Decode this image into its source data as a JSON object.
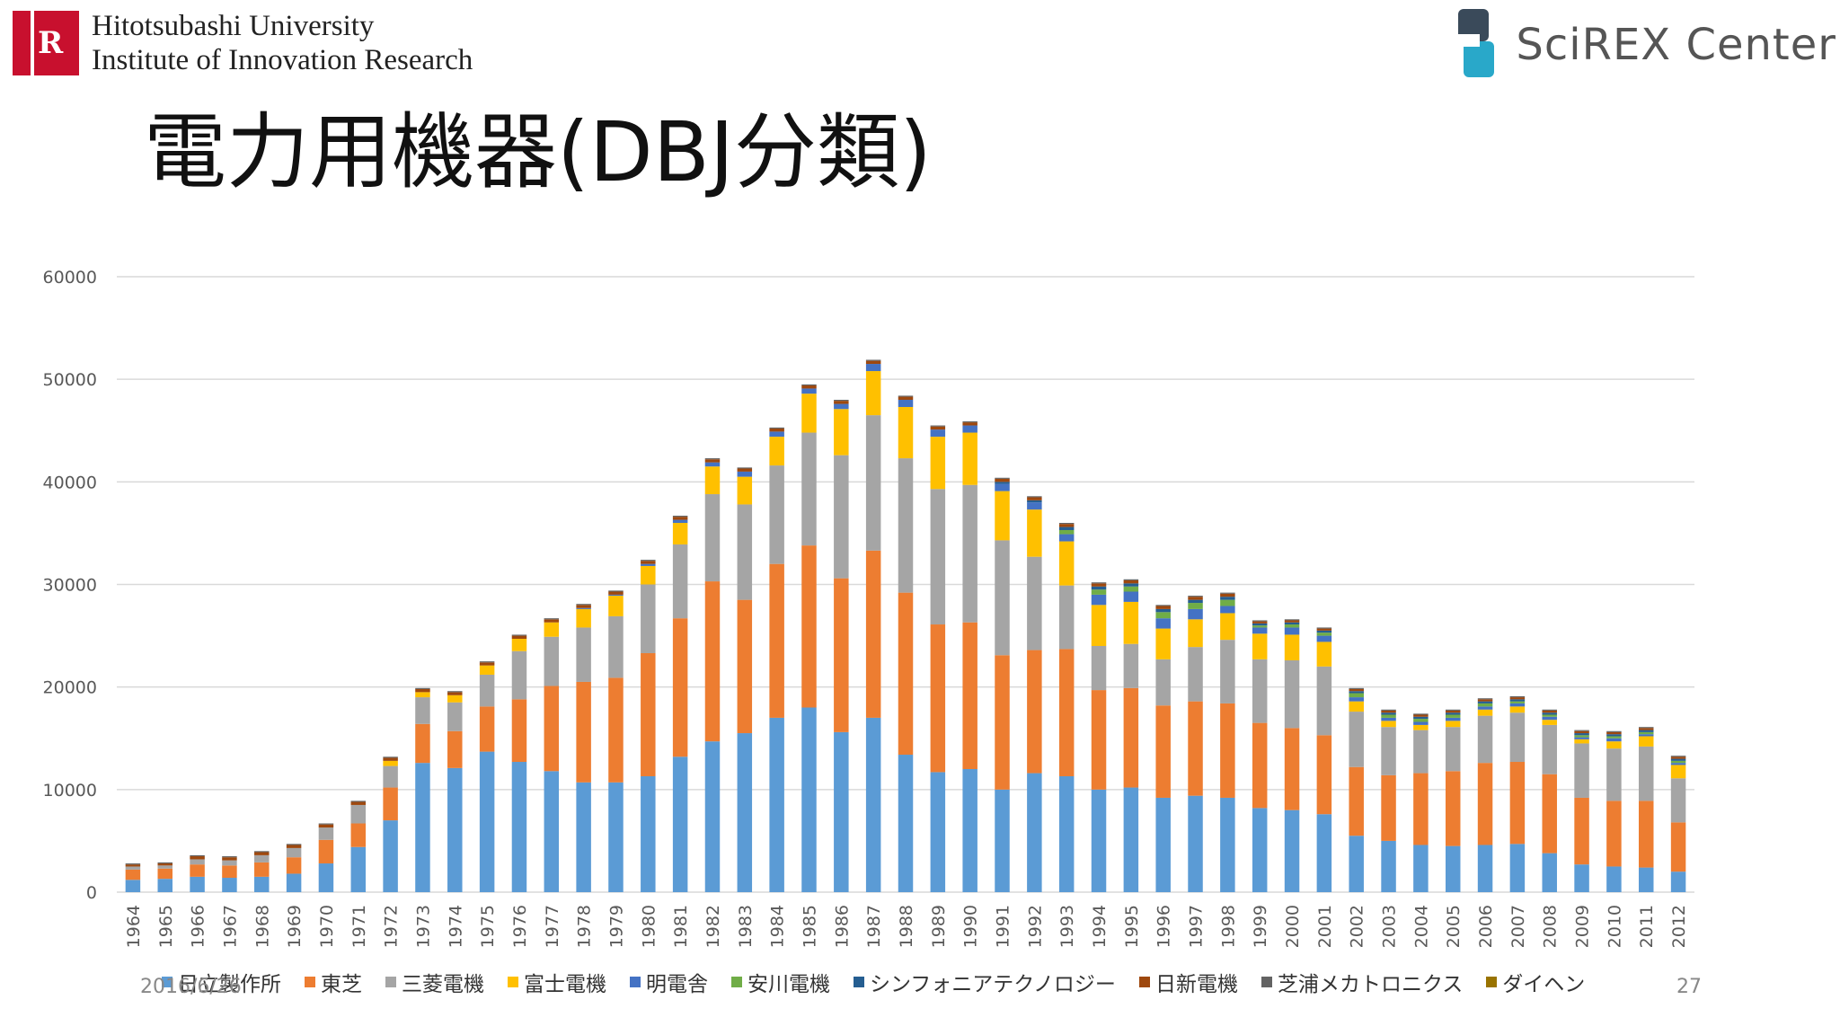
{
  "header": {
    "university_line1": "Hitotsubashi University",
    "university_line2": "Institute of Innovation Research",
    "logo_icon": "hitotsubashi-logo-icon",
    "logo_mark_letter": "R",
    "partner_name": "SciREX Center",
    "partner_icon": "scirex-logo-icon"
  },
  "slide": {
    "title": "電力用機器(DBJ分類)",
    "date": "2016/6/26",
    "page_number": "27"
  },
  "colors": {
    "hitachi": "#5b9bd5",
    "toshiba": "#ed7d31",
    "mitsubishi": "#a5a5a5",
    "fuji": "#ffc000",
    "meiden": "#4472c4",
    "yaskawa": "#70ad47",
    "symphonia": "#255e91",
    "nissin": "#9e480e",
    "shibaura": "#636363",
    "daihen": "#997300"
  },
  "chart_data": {
    "type": "bar",
    "stacked": true,
    "ylim": [
      0,
      60000
    ],
    "yticks": [
      0,
      10000,
      20000,
      30000,
      40000,
      50000,
      60000
    ],
    "grid": true,
    "legend_position": "bottom",
    "categories": [
      "1964",
      "1965",
      "1966",
      "1967",
      "1968",
      "1969",
      "1970",
      "1971",
      "1972",
      "1973",
      "1974",
      "1975",
      "1976",
      "1977",
      "1978",
      "1979",
      "1980",
      "1981",
      "1982",
      "1983",
      "1984",
      "1985",
      "1986",
      "1987",
      "1988",
      "1989",
      "1990",
      "1991",
      "1992",
      "1993",
      "1994",
      "1995",
      "1996",
      "1997",
      "1998",
      "1999",
      "2000",
      "2001",
      "2002",
      "2003",
      "2004",
      "2005",
      "2006",
      "2007",
      "2008",
      "2009",
      "2010",
      "2011",
      "2012"
    ],
    "series": [
      {
        "name": "日立製作所",
        "color": "#5b9bd5",
        "values": [
          1200,
          1300,
          1500,
          1400,
          1500,
          1800,
          2800,
          4400,
          7000,
          12600,
          12100,
          13700,
          12700,
          11800,
          10700,
          10700,
          11300,
          13200,
          14700,
          15500,
          17000,
          18000,
          15600,
          17000,
          13400,
          11700,
          12000,
          10000,
          11600,
          11300,
          10000,
          10200,
          9200,
          9400,
          9200,
          8200,
          8000,
          7600,
          5500,
          5000,
          4600,
          4500,
          4600,
          4700,
          3800,
          2700,
          2500,
          2400,
          2000
        ]
      },
      {
        "name": "東芝",
        "color": "#ed7d31",
        "values": [
          1000,
          1000,
          1200,
          1200,
          1400,
          1600,
          2300,
          2300,
          3200,
          3800,
          3600,
          4400,
          6100,
          8300,
          9800,
          10200,
          12000,
          13500,
          15600,
          13000,
          15000,
          15800,
          15000,
          16300,
          15800,
          14400,
          14300,
          13100,
          12000,
          12400,
          9700,
          9700,
          9000,
          9200,
          9200,
          8300,
          8000,
          7700,
          6700,
          6400,
          7000,
          7300,
          8000,
          8000,
          7700,
          6500,
          6400,
          6500,
          4800
        ]
      },
      {
        "name": "三菱電機",
        "color": "#a5a5a5",
        "values": [
          300,
          300,
          500,
          500,
          700,
          900,
          1200,
          1800,
          2100,
          2600,
          2800,
          3100,
          4700,
          4800,
          5300,
          6000,
          6700,
          7200,
          8500,
          9300,
          9600,
          11000,
          12000,
          13200,
          13100,
          13200,
          13400,
          11200,
          9100,
          6200,
          4300,
          4300,
          4500,
          5300,
          6200,
          6200,
          6600,
          6700,
          5400,
          4700,
          4200,
          4300,
          4600,
          4800,
          4800,
          5300,
          5100,
          5300,
          4300
        ]
      },
      {
        "name": "富士電機",
        "color": "#ffc000",
        "values": [
          0,
          0,
          0,
          0,
          0,
          0,
          0,
          0,
          500,
          500,
          700,
          900,
          1200,
          1400,
          1800,
          2000,
          1800,
          2100,
          2700,
          2700,
          2800,
          3800,
          4500,
          4300,
          5000,
          5100,
          5100,
          4800,
          4600,
          4300,
          4000,
          4100,
          3000,
          2700,
          2600,
          2500,
          2500,
          2400,
          1000,
          600,
          500,
          600,
          600,
          600,
          500,
          400,
          700,
          1000,
          1300
        ]
      },
      {
        "name": "明電舎",
        "color": "#4472c4",
        "values": [
          0,
          0,
          0,
          0,
          0,
          0,
          0,
          0,
          0,
          0,
          0,
          0,
          0,
          0,
          100,
          100,
          200,
          300,
          400,
          500,
          500,
          500,
          500,
          700,
          700,
          700,
          700,
          700,
          700,
          700,
          1000,
          1000,
          1000,
          1000,
          700,
          600,
          700,
          600,
          400,
          300,
          300,
          300,
          300,
          300,
          300,
          200,
          300,
          200,
          200
        ]
      },
      {
        "name": "安川電機",
        "color": "#70ad47",
        "values": [
          0,
          0,
          0,
          0,
          0,
          0,
          0,
          0,
          0,
          0,
          0,
          0,
          0,
          0,
          0,
          0,
          0,
          0,
          0,
          0,
          0,
          0,
          0,
          0,
          0,
          0,
          0,
          0,
          0,
          400,
          500,
          500,
          600,
          600,
          600,
          200,
          300,
          300,
          400,
          300,
          300,
          300,
          300,
          200,
          200,
          200,
          200,
          200,
          200
        ]
      },
      {
        "name": "シンフォニアテクノロジー",
        "color": "#255e91",
        "values": [
          0,
          0,
          0,
          0,
          0,
          0,
          0,
          0,
          0,
          0,
          0,
          0,
          0,
          0,
          0,
          0,
          0,
          0,
          0,
          0,
          0,
          0,
          0,
          0,
          0,
          0,
          0,
          200,
          200,
          300,
          300,
          300,
          300,
          300,
          300,
          200,
          200,
          200,
          200,
          200,
          200,
          200,
          200,
          200,
          200,
          200,
          200,
          200,
          200
        ]
      },
      {
        "name": "日新電機",
        "color": "#9e480e",
        "values": [
          200,
          200,
          300,
          300,
          300,
          300,
          300,
          300,
          300,
          300,
          300,
          300,
          300,
          300,
          300,
          300,
          300,
          300,
          300,
          300,
          300,
          300,
          300,
          300,
          300,
          300,
          300,
          300,
          300,
          300,
          300,
          300,
          300,
          300,
          300,
          200,
          200,
          200,
          200,
          200,
          200,
          200,
          200,
          200,
          200,
          200,
          200,
          200,
          200
        ]
      },
      {
        "name": "芝浦メカトロニクス",
        "color": "#636363",
        "values": [
          100,
          100,
          100,
          100,
          100,
          100,
          100,
          100,
          100,
          100,
          100,
          100,
          100,
          100,
          100,
          100,
          100,
          100,
          100,
          100,
          100,
          100,
          100,
          100,
          100,
          100,
          100,
          100,
          100,
          100,
          100,
          100,
          100,
          100,
          100,
          100,
          100,
          100,
          100,
          100,
          100,
          100,
          100,
          100,
          100,
          100,
          100,
          100,
          100
        ]
      },
      {
        "name": "ダイヘン",
        "color": "#997300",
        "values": [
          0,
          0,
          0,
          0,
          0,
          0,
          0,
          0,
          0,
          0,
          0,
          0,
          0,
          0,
          0,
          0,
          0,
          0,
          0,
          0,
          0,
          0,
          0,
          0,
          0,
          0,
          0,
          0,
          0,
          0,
          0,
          0,
          0,
          0,
          0,
          0,
          0,
          0,
          0,
          0,
          0,
          0,
          0,
          0,
          0,
          0,
          0,
          0,
          0
        ]
      }
    ]
  }
}
